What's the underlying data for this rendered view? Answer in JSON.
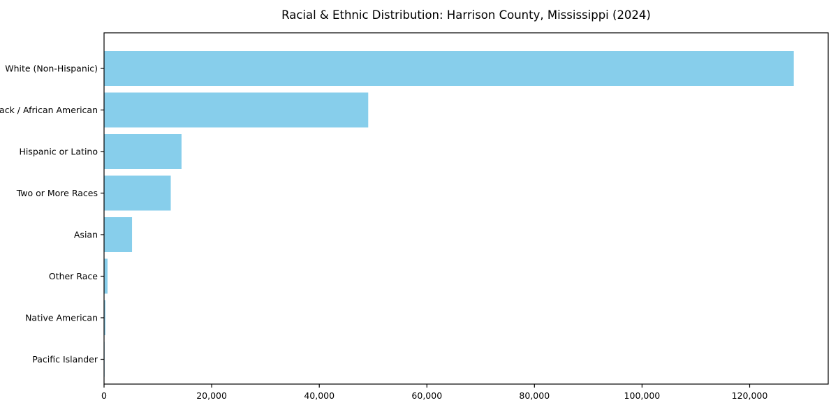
{
  "chart_data": {
    "type": "bar",
    "orientation": "horizontal",
    "title": "Racial & Ethnic Distribution: Harrison County, Mississippi (2024)",
    "categories": [
      "White (Non-Hispanic)",
      "Black / African American",
      "Hispanic or Latino",
      "Two or More Races",
      "Asian",
      "Other Race",
      "Native American",
      "Pacific Islander"
    ],
    "values": [
      128200,
      49100,
      14400,
      12400,
      5200,
      650,
      250,
      100
    ],
    "xlabel": "",
    "ylabel": "",
    "xlim": [
      0,
      134600
    ],
    "xticks": [
      0,
      20000,
      40000,
      60000,
      80000,
      100000,
      120000
    ],
    "xtick_labels": [
      "0",
      "20,000",
      "40,000",
      "60,000",
      "80,000",
      "100,000",
      "120,000"
    ],
    "bar_color": "#87CEEB",
    "axis_color": "#000000",
    "background": "#ffffff",
    "grid": false,
    "legend": null
  }
}
